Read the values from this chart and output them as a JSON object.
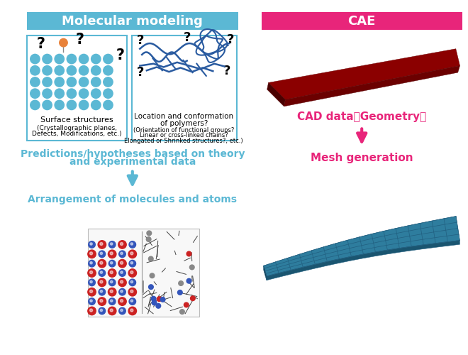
{
  "title_left": "Molecular modeling",
  "title_right": "CAE",
  "title_left_bg": "#5BB8D4",
  "title_right_bg": "#E8257A",
  "title_text_color": "#FFFFFF",
  "left_arrow_color": "#5BB8D4",
  "right_arrow_color": "#E8257A",
  "box_border_color": "#5BB8D4",
  "box1_label1": "Surface structures",
  "box1_label2": "(Crystallographic planes,\nDefects, Modifications, etc.)",
  "box2_label1": "Location and conformation\nof polymers?",
  "box2_label2": "(Orientation of functional groups?\nLinear or cross-linked chains?\nElongated or Shrinked structures?, etc.)",
  "left_middle_text1": "Predictions/hypotheses based on theory",
  "left_middle_text2": "and experimental data",
  "left_bottom_text": "Arrangement of molecules and atoms",
  "right_middle_text": "CAD data（Geometry）",
  "right_bottom_text": "Mesh generation",
  "left_text_color": "#5BB8D4",
  "right_label_color": "#E8257A",
  "background_color": "#FFFFFF",
  "figsize": [
    6.6,
    5.0
  ],
  "dpi": 100
}
